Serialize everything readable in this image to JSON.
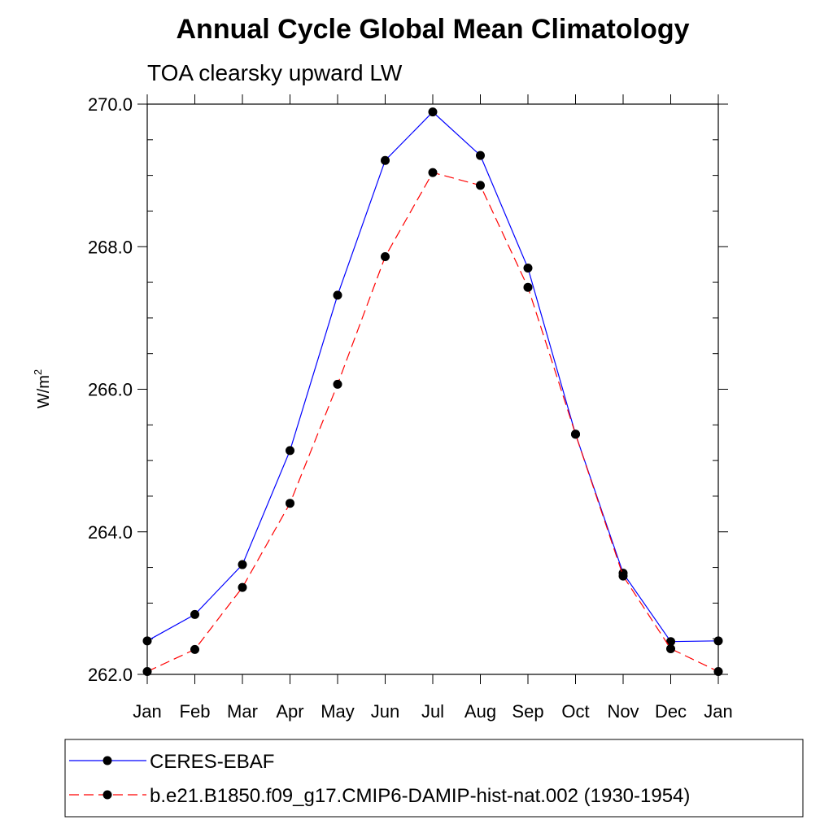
{
  "chart_data": {
    "type": "line",
    "title": "Annual Cycle Global Mean Climatology",
    "subtitle": "TOA clearsky upward LW",
    "ylabel": "W/m",
    "ylabel_superscript": "2",
    "ylim": [
      262.0,
      270.0
    ],
    "y_ticks": [
      "262.0",
      "264.0",
      "266.0",
      "268.0",
      "270.0"
    ],
    "categories": [
      "Jan",
      "Feb",
      "Mar",
      "Apr",
      "May",
      "Jun",
      "Jul",
      "Aug",
      "Sep",
      "Oct",
      "Nov",
      "Dec",
      "Jan"
    ],
    "series": [
      {
        "name": "CERES-EBAF",
        "color": "#0000ff",
        "style": "solid",
        "values": [
          262.47,
          262.84,
          263.54,
          265.14,
          267.32,
          269.21,
          269.89,
          269.28,
          267.7,
          265.37,
          263.42,
          262.46,
          262.47
        ]
      },
      {
        "name": "b.e21.B1850.f09_g17.CMIP6-DAMIP-hist-nat.002 (1930-1954)",
        "color": "#ff0000",
        "style": "dashed",
        "values": [
          262.04,
          262.35,
          263.22,
          264.4,
          266.07,
          267.86,
          269.04,
          268.86,
          267.43,
          265.37,
          263.38,
          262.36,
          262.04
        ]
      }
    ]
  }
}
